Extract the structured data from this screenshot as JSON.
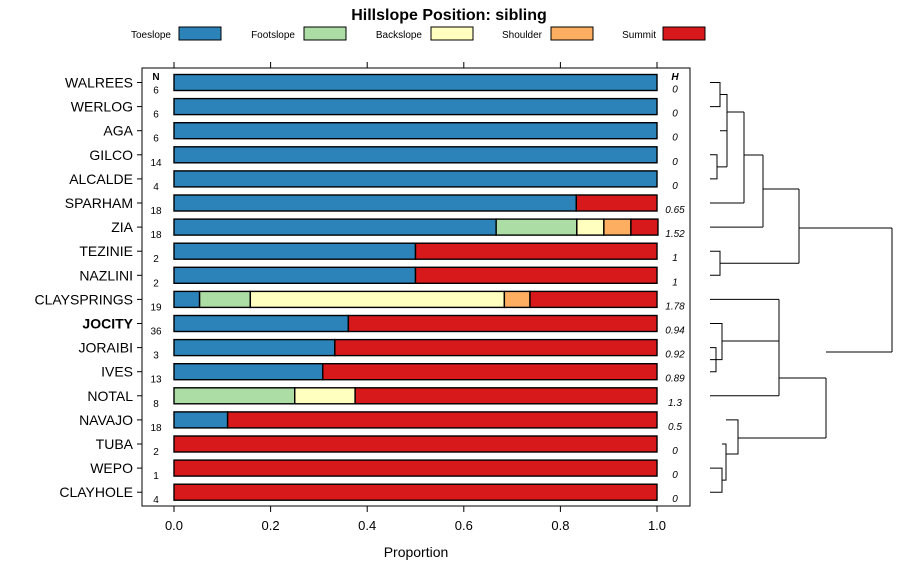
{
  "chart_data": {
    "type": "bar",
    "orientation": "horizontal",
    "stacked": true,
    "title": "Hillslope Position: sibling",
    "xlabel": "Proportion",
    "ylabel": "",
    "xlim": [
      0,
      1
    ],
    "x_ticks": [
      "0.0",
      "0.2",
      "0.4",
      "0.6",
      "0.8",
      "1.0"
    ],
    "x_tick_values": [
      0,
      0.2,
      0.4,
      0.6,
      0.8,
      1.0
    ],
    "n_header": "N",
    "h_header": "H",
    "legend_position": "top",
    "legend": [
      {
        "name": "Toeslope",
        "color": "#2b83ba"
      },
      {
        "name": "Footslope",
        "color": "#abdda4"
      },
      {
        "name": "Backslope",
        "color": "#ffffbf"
      },
      {
        "name": "Shoulder",
        "color": "#fdae61"
      },
      {
        "name": "Summit",
        "color": "#d7191c"
      }
    ],
    "categories": [
      "WALREES",
      "WERLOG",
      "AGA",
      "GILCO",
      "ALCALDE",
      "SPARHAM",
      "ZIA",
      "TEZINIE",
      "NAZLINI",
      "CLAYSPRINGS",
      "JOCITY",
      "JORAIBI",
      "IVES",
      "NOTAL",
      "NAVAJO",
      "TUBA",
      "WEPO",
      "CLAYHOLE"
    ],
    "highlighted_category": "JOCITY",
    "n_values": [
      "6",
      "6",
      "6",
      "14",
      "4",
      "18",
      "18",
      "2",
      "2",
      "19",
      "36",
      "3",
      "13",
      "8",
      "18",
      "2",
      "1",
      "4"
    ],
    "h_values": [
      "0",
      "0",
      "0",
      "0",
      "0",
      "0.65",
      "1.52",
      "1",
      "1",
      "1.78",
      "0.94",
      "0.92",
      "0.89",
      "1.3",
      "0.5",
      "0",
      "0",
      "0"
    ],
    "series": [
      {
        "name": "Toeslope",
        "values": [
          1,
          1,
          1,
          1,
          1,
          0.833,
          0.667,
          0.5,
          0.5,
          0.053,
          0.361,
          0.333,
          0.308,
          0,
          0.111,
          0,
          0,
          0
        ]
      },
      {
        "name": "Footslope",
        "values": [
          0,
          0,
          0,
          0,
          0,
          0,
          0.167,
          0,
          0,
          0.105,
          0,
          0,
          0,
          0.25,
          0,
          0,
          0,
          0
        ]
      },
      {
        "name": "Backslope",
        "values": [
          0,
          0,
          0,
          0,
          0,
          0,
          0.056,
          0,
          0,
          0.526,
          0,
          0,
          0,
          0.125,
          0,
          0,
          0,
          0
        ]
      },
      {
        "name": "Shoulder",
        "values": [
          0,
          0,
          0,
          0,
          0,
          0,
          0.056,
          0,
          0,
          0.053,
          0,
          0,
          0,
          0,
          0,
          0,
          0,
          0
        ]
      },
      {
        "name": "Summit",
        "values": [
          0,
          0,
          0,
          0,
          0,
          0.167,
          0.056,
          0.5,
          0.5,
          0.263,
          0.639,
          0.667,
          0.692,
          0.625,
          0.889,
          1,
          1,
          1
        ]
      }
    ]
  }
}
